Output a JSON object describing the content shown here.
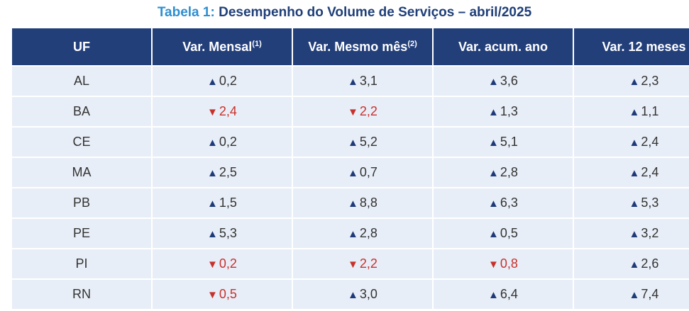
{
  "title": {
    "label": "Tabela 1:",
    "text": "Desempenho do Volume de Serviços – abril/2025"
  },
  "colors": {
    "header_bg": "#233f7a",
    "row_bg": "#e8eef7",
    "up": "#1e3a78",
    "down": "#c9302c",
    "title_label": "#2e8fd0",
    "title_text": "#1f3f78"
  },
  "table": {
    "headers": [
      {
        "text": "UF",
        "sup": ""
      },
      {
        "text": "Var. Mensal",
        "sup": "(1)"
      },
      {
        "text": "Var. Mesmo mês",
        "sup": "(2)"
      },
      {
        "text": "Var. acum. ano",
        "sup": ""
      },
      {
        "text": "Var. 12 meses",
        "sup": ""
      }
    ],
    "rows": [
      {
        "uf": "AL",
        "cells": [
          {
            "dir": "up",
            "val": "0,2"
          },
          {
            "dir": "up",
            "val": "3,1"
          },
          {
            "dir": "up",
            "val": "3,6"
          },
          {
            "dir": "up",
            "val": "2,3"
          }
        ]
      },
      {
        "uf": "BA",
        "cells": [
          {
            "dir": "down",
            "val": "2,4"
          },
          {
            "dir": "down",
            "val": "2,2"
          },
          {
            "dir": "up",
            "val": "1,3"
          },
          {
            "dir": "up",
            "val": "1,1"
          }
        ]
      },
      {
        "uf": "CE",
        "cells": [
          {
            "dir": "up",
            "val": "0,2"
          },
          {
            "dir": "up",
            "val": "5,2"
          },
          {
            "dir": "up",
            "val": "5,1"
          },
          {
            "dir": "up",
            "val": "2,4"
          }
        ]
      },
      {
        "uf": "MA",
        "cells": [
          {
            "dir": "up",
            "val": "2,5"
          },
          {
            "dir": "up",
            "val": "0,7"
          },
          {
            "dir": "up",
            "val": "2,8"
          },
          {
            "dir": "up",
            "val": "2,4"
          }
        ]
      },
      {
        "uf": "PB",
        "cells": [
          {
            "dir": "up",
            "val": "1,5"
          },
          {
            "dir": "up",
            "val": "8,8"
          },
          {
            "dir": "up",
            "val": "6,3"
          },
          {
            "dir": "up",
            "val": "5,3"
          }
        ]
      },
      {
        "uf": "PE",
        "cells": [
          {
            "dir": "up",
            "val": "5,3"
          },
          {
            "dir": "up",
            "val": "2,8"
          },
          {
            "dir": "up",
            "val": "0,5"
          },
          {
            "dir": "up",
            "val": "3,2"
          }
        ]
      },
      {
        "uf": "PI",
        "cells": [
          {
            "dir": "down",
            "val": "0,2"
          },
          {
            "dir": "down",
            "val": "2,2"
          },
          {
            "dir": "down",
            "val": "0,8"
          },
          {
            "dir": "up",
            "val": "2,6"
          }
        ]
      },
      {
        "uf": "RN",
        "cells": [
          {
            "dir": "down",
            "val": "0,5"
          },
          {
            "dir": "up",
            "val": "3,0"
          },
          {
            "dir": "up",
            "val": "6,4"
          },
          {
            "dir": "up",
            "val": "7,4"
          }
        ]
      }
    ]
  }
}
